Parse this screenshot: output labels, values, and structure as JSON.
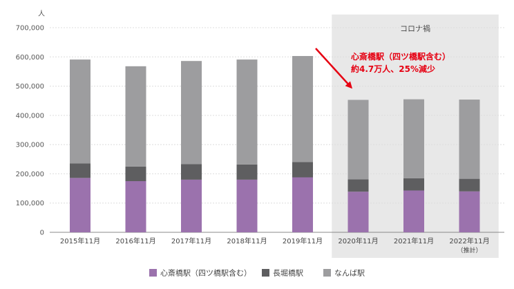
{
  "chart_data": {
    "type": "bar",
    "stacked": true,
    "y_unit_label": "人",
    "ylim": [
      0,
      700000
    ],
    "yticks": [
      "0",
      "100,000",
      "200,000",
      "300,000",
      "400,000",
      "500,000",
      "600,000",
      "700,000"
    ],
    "ytick_values": [
      0,
      100000,
      200000,
      300000,
      400000,
      500000,
      600000,
      700000
    ],
    "grid": true,
    "categories": [
      "2015年11月",
      "2016年11月",
      "2017年11月",
      "2018年11月",
      "2019年11月",
      "2020年11月",
      "2021年11月",
      "2022年11月"
    ],
    "category_sublabels": [
      "",
      "",
      "",
      "",
      "",
      "",
      "",
      "（推計）"
    ],
    "series": [
      {
        "name": "心斎橋駅（四ツ橋駅含む）",
        "color": "#9b72ad",
        "values": [
          186000,
          175000,
          180000,
          180000,
          188000,
          139000,
          143000,
          140000
        ]
      },
      {
        "name": "長堀橋駅",
        "color": "#5e5e60",
        "values": [
          50000,
          50000,
          53000,
          52000,
          52000,
          42000,
          42000,
          43000
        ]
      },
      {
        "name": "なんば駅",
        "color": "#9d9d9f",
        "values": [
          355000,
          343000,
          353000,
          359000,
          363000,
          272000,
          270000,
          271000
        ]
      }
    ],
    "shaded_region": {
      "label": "コロナ禍",
      "from_category": 5,
      "to_category": 7,
      "color": "#e8e8e8"
    },
    "annotation": {
      "line1": "心斎橋駅（四ツ橋駅含む）",
      "line2": "約4.7万人、25%減少",
      "color": "#e60012",
      "points_to_category": 5
    },
    "legend": {
      "placement": "bottom-center"
    }
  }
}
